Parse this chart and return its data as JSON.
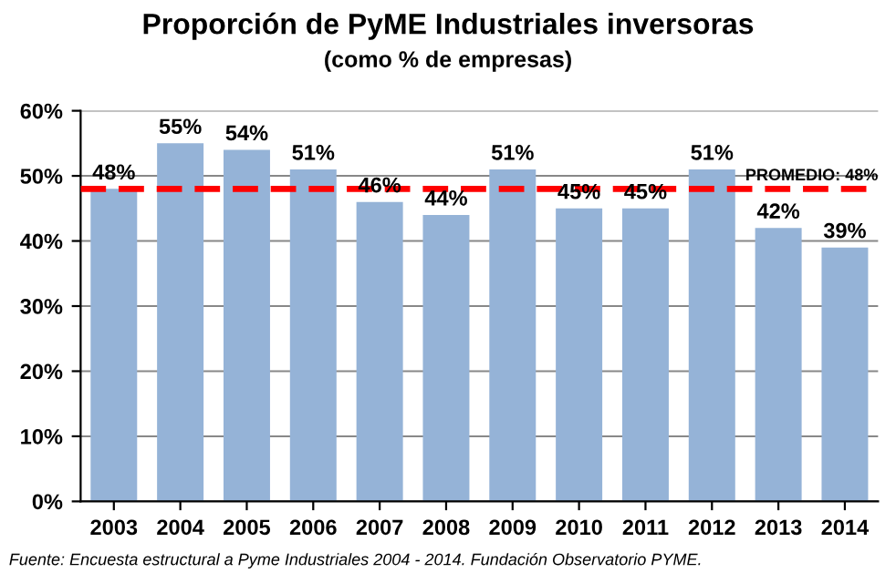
{
  "chart_data": {
    "type": "bar",
    "title": "Proporción de PyME Industriales inversoras",
    "subtitle": "(como % de empresas)",
    "categories": [
      "2003",
      "2004",
      "2005",
      "2006",
      "2007",
      "2008",
      "2009",
      "2010",
      "2011",
      "2012",
      "2013",
      "2014"
    ],
    "values": [
      48,
      55,
      54,
      51,
      46,
      44,
      51,
      45,
      45,
      51,
      42,
      39
    ],
    "value_labels": [
      "48%",
      "55%",
      "54%",
      "51%",
      "46%",
      "44%",
      "51%",
      "45%",
      "45%",
      "51%",
      "42%",
      "39%"
    ],
    "color": "#95b3d7",
    "ylim": [
      0,
      60
    ],
    "yticks": [
      {
        "value": 0,
        "label": "0%"
      },
      {
        "value": 10,
        "label": "10%"
      },
      {
        "value": 20,
        "label": "20%"
      },
      {
        "value": 30,
        "label": "30%"
      },
      {
        "value": 40,
        "label": "40%"
      },
      {
        "value": 50,
        "label": "50%"
      },
      {
        "value": 60,
        "label": "60%"
      }
    ],
    "grid": "y",
    "ref_lines": [
      {
        "axis": "y",
        "value": 48,
        "label": "PROMEDIO: 48%",
        "color": "#ff0000",
        "line_style": "dashed"
      }
    ],
    "annotations": [
      "Fuente: Encuesta estructural a Pyme Industriales 2004 - 2014. Fundación Observatorio PYME."
    ]
  }
}
